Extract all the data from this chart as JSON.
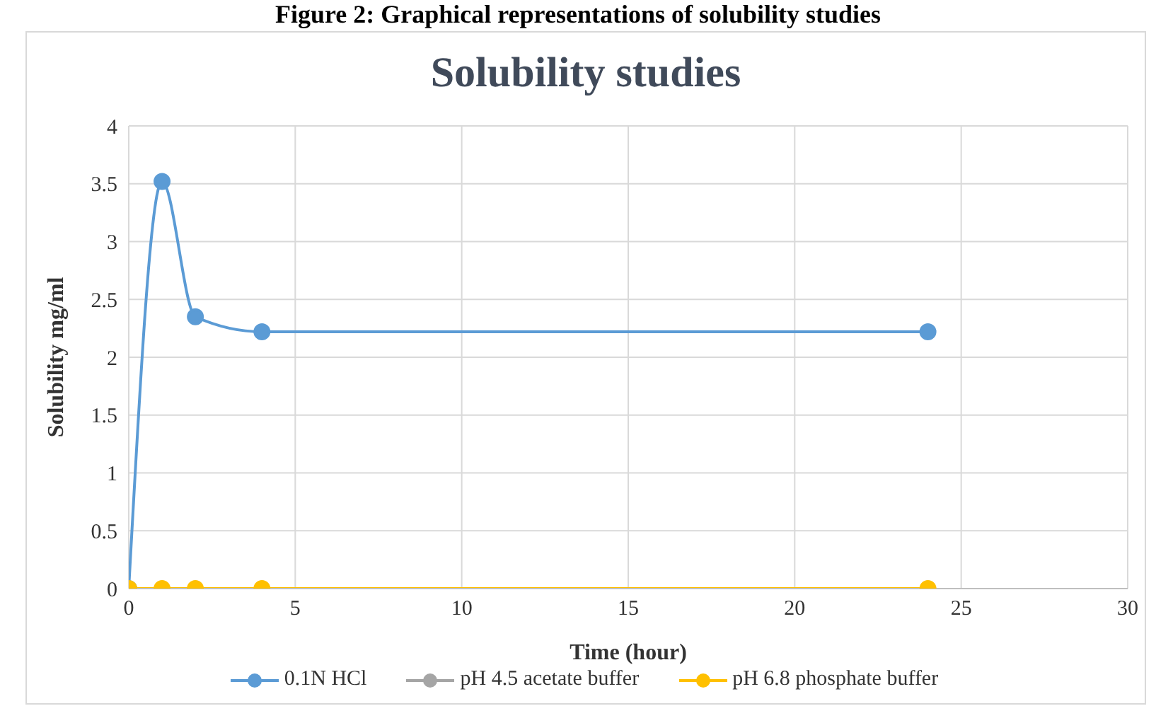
{
  "chart_data": {
    "type": "line",
    "title": "Solubility studies",
    "xlabel": "Time (hour)",
    "ylabel": "Solubility mg/ml",
    "annotations": [
      "Figure 2: Graphical representations of solubility studies"
    ],
    "x": [
      0,
      1,
      2,
      4,
      24
    ],
    "series": [
      {
        "name": "0.1N HCl",
        "color": "#5b9bd5",
        "values": [
          0,
          3.52,
          2.35,
          2.22,
          2.22
        ]
      },
      {
        "name": "pH 4.5 acetate buffer",
        "color": "#a5a5a5",
        "values": [
          null,
          null,
          null,
          null,
          null
        ]
      },
      {
        "name": "pH 6.8 phosphate buffer",
        "color": "#ffc000",
        "values": [
          0,
          0,
          0,
          0,
          0
        ]
      }
    ],
    "xlim": [
      0,
      30
    ],
    "xticks": [
      0,
      5,
      10,
      15,
      20,
      25,
      30
    ],
    "ylim": [
      0,
      4
    ],
    "yticks": [
      0,
      0.5,
      1,
      1.5,
      2,
      2.5,
      3,
      3.5,
      4
    ],
    "grid": true,
    "legend": "bottom",
    "marker": "circle",
    "line_style": "solid"
  }
}
